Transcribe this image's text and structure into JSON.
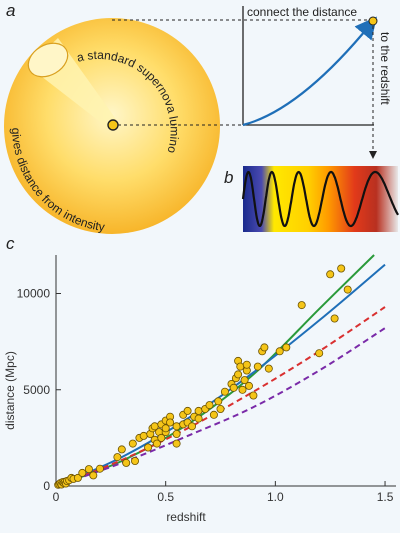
{
  "panel_a": {
    "label": "a",
    "arc_top_text": "a standard supernova luminosity",
    "arc_bottom_text": "gives distance from intensity",
    "curve_top_text": "connect the distance",
    "curve_side_text": "to the redshift"
  },
  "panel_b": {
    "label": "b",
    "spectrum_colors": [
      "#1a2a8c",
      "#ffe800",
      "#ff9a00",
      "#d8281a",
      "#e8e8e8"
    ]
  },
  "panel_c": {
    "label": "c"
  },
  "chart_data": {
    "type": "scatter",
    "title": "",
    "xlabel": "redshift",
    "ylabel": "distance (Mpc)",
    "xlim": [
      0,
      1.55
    ],
    "ylim": [
      0,
      12000
    ],
    "x_ticks": [
      0,
      0.5,
      1.0,
      1.5
    ],
    "x_tick_labels": [
      "0",
      "0.5",
      "1.0",
      "1.5"
    ],
    "y_ticks": [
      0,
      5000,
      10000
    ],
    "y_tick_labels": [
      "0",
      "5000",
      "10000"
    ],
    "grid": false,
    "legend": "none",
    "series": [
      {
        "kind": "points",
        "color": "#f5c518",
        "x": [
          0.01,
          0.015,
          0.02,
          0.025,
          0.03,
          0.035,
          0.04,
          0.045,
          0.05,
          0.06,
          0.07,
          0.08,
          0.1,
          0.12,
          0.15,
          0.17,
          0.2,
          0.28,
          0.3,
          0.32,
          0.35,
          0.36,
          0.38,
          0.4,
          0.42,
          0.43,
          0.44,
          0.45,
          0.45,
          0.46,
          0.47,
          0.48,
          0.48,
          0.5,
          0.5,
          0.5,
          0.52,
          0.52,
          0.55,
          0.55,
          0.55,
          0.58,
          0.58,
          0.6,
          0.6,
          0.62,
          0.63,
          0.65,
          0.65,
          0.68,
          0.7,
          0.72,
          0.74,
          0.75,
          0.77,
          0.8,
          0.81,
          0.82,
          0.83,
          0.83,
          0.84,
          0.85,
          0.86,
          0.87,
          0.87,
          0.88,
          0.9,
          0.92,
          0.94,
          0.95,
          0.97,
          1.02,
          1.05,
          1.12,
          1.2,
          1.25,
          1.27,
          1.3,
          1.33
        ],
        "y": [
          60,
          100,
          150,
          80,
          200,
          160,
          220,
          130,
          260,
          300,
          420,
          370,
          420,
          680,
          880,
          550,
          900,
          1500,
          1900,
          1200,
          2200,
          1300,
          2500,
          2600,
          2000,
          2700,
          3000,
          3100,
          2400,
          2200,
          2800,
          3200,
          2500,
          3400,
          2800,
          3000,
          3600,
          3300,
          3100,
          2700,
          2200,
          3700,
          3200,
          3300,
          3900,
          3100,
          3600,
          3900,
          3500,
          4000,
          4200,
          3700,
          4400,
          4000,
          4900,
          5300,
          5100,
          5600,
          5800,
          6500,
          6200,
          5000,
          5500,
          6000,
          6300,
          5200,
          4700,
          6200,
          7000,
          7200,
          6100,
          7000,
          7200,
          9400,
          6900,
          11000,
          8700,
          11300,
          10200
        ]
      },
      {
        "kind": "line",
        "color": "#2a9a3a",
        "x": [
          0,
          0.3,
          0.6,
          0.9,
          1.2,
          1.45
        ],
        "y": [
          0,
          1300,
          3200,
          5800,
          9200,
          12000
        ]
      },
      {
        "kind": "line",
        "color": "#1f6fb8",
        "x": [
          0,
          0.3,
          0.6,
          0.9,
          1.2,
          1.5
        ],
        "y": [
          0,
          1500,
          3500,
          5900,
          8600,
          11500
        ]
      },
      {
        "kind": "line",
        "color": "#d93030",
        "x": [
          0,
          0.3,
          0.6,
          0.9,
          1.2,
          1.5
        ],
        "y": [
          0,
          1350,
          3000,
          4900,
          7000,
          9300
        ]
      },
      {
        "kind": "line",
        "color": "#7a2aa8",
        "x": [
          0,
          0.3,
          0.6,
          0.9,
          1.2,
          1.5
        ],
        "y": [
          0,
          1200,
          2600,
          4100,
          6000,
          8200
        ]
      }
    ]
  }
}
